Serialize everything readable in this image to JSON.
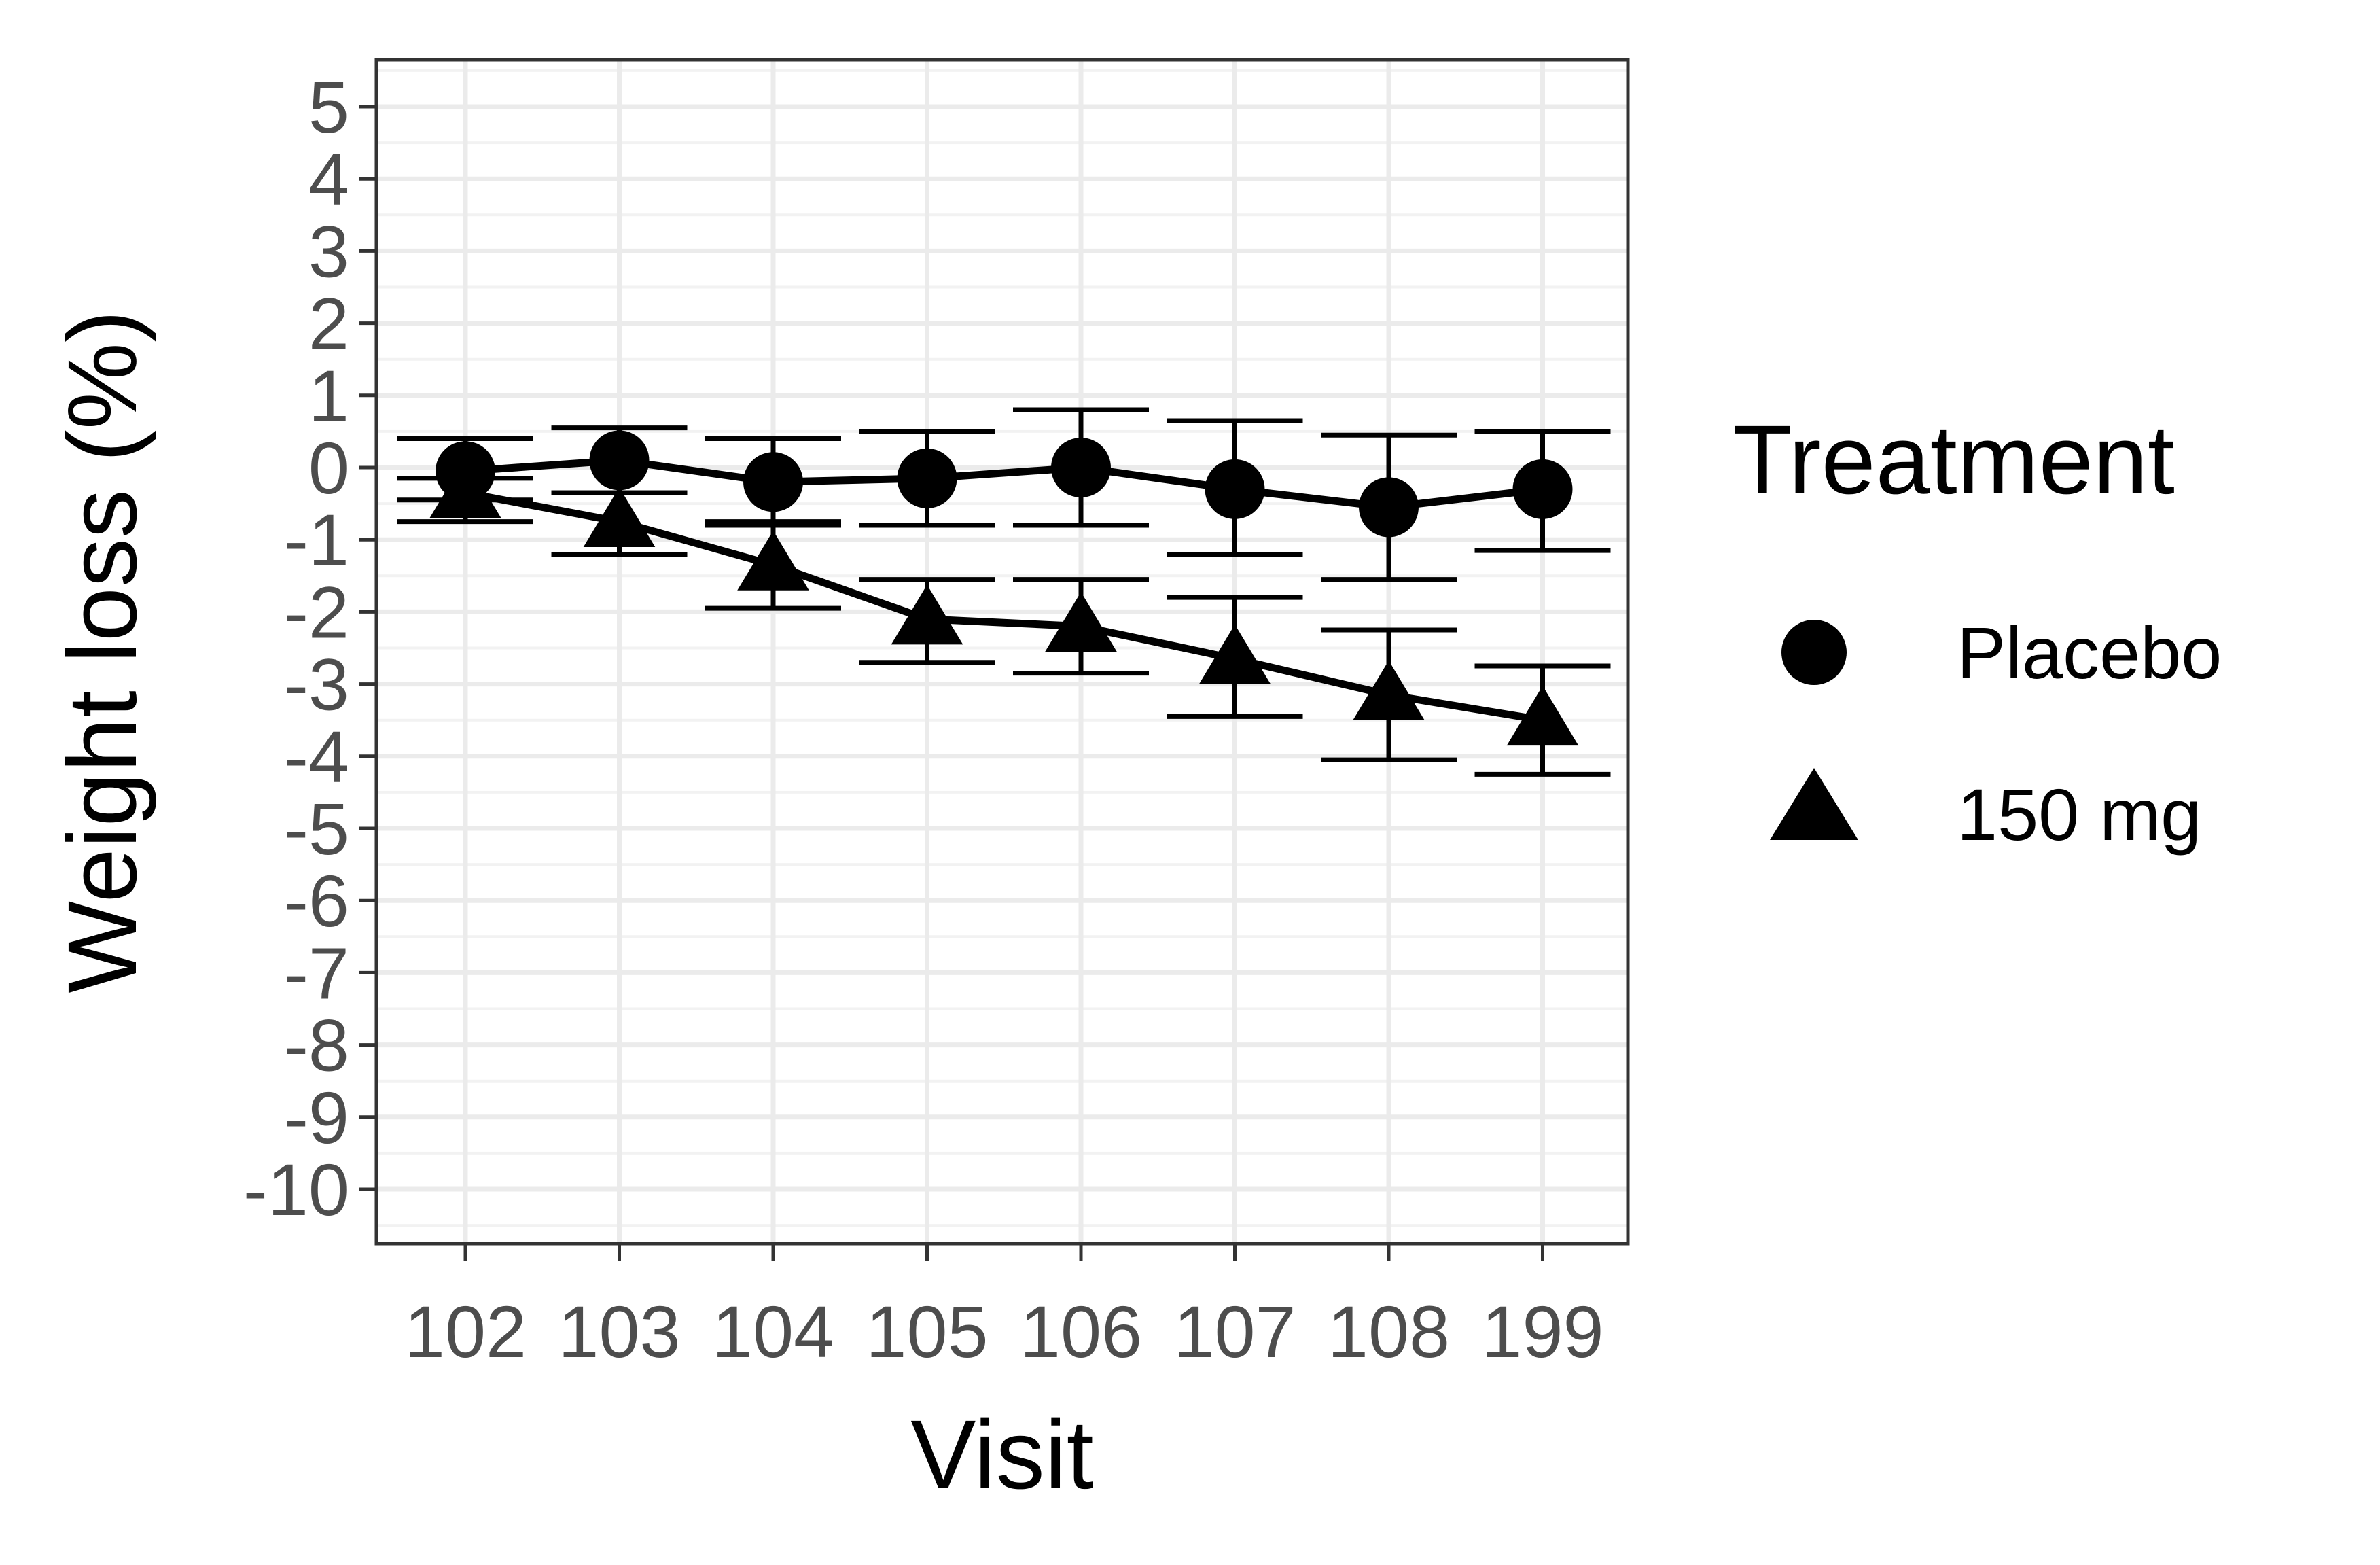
{
  "chart_data": {
    "type": "line",
    "title": "",
    "xlabel": "Visit",
    "ylabel": "Weight loss (%)",
    "categories": [
      "102",
      "103",
      "104",
      "105",
      "106",
      "107",
      "108",
      "199"
    ],
    "ylim": [
      -10.7,
      5.7
    ],
    "yticks": [
      5,
      4,
      3,
      2,
      1,
      0,
      -1,
      -2,
      -3,
      -4,
      -5,
      -6,
      -7,
      -8,
      -9,
      -10
    ],
    "ytick_labels": [
      "5",
      "4",
      "3",
      "2",
      "1",
      "0",
      "-1",
      "-2",
      "-3",
      "-4",
      "-5",
      "-6",
      "-7",
      "-8",
      "-9",
      "-10"
    ],
    "grid": true,
    "legend": {
      "title": "Treatment",
      "placement": "right"
    },
    "series": [
      {
        "name": "Placebo",
        "marker": "circle",
        "values": [
          -0.05,
          0.1,
          -0.2,
          -0.15,
          0.0,
          -0.3,
          -0.55,
          -0.3
        ],
        "error_low": [
          -0.45,
          -0.35,
          -0.75,
          -0.8,
          -0.8,
          -1.2,
          -1.55,
          -1.15
        ],
        "error_high": [
          0.4,
          0.55,
          0.4,
          0.5,
          0.8,
          0.65,
          0.45,
          0.5
        ]
      },
      {
        "name": "150 mg",
        "marker": "triangle",
        "values": [
          -0.35,
          -0.75,
          -1.35,
          -2.1,
          -2.2,
          -2.65,
          -3.15,
          -3.5
        ],
        "error_low": [
          -0.75,
          -1.2,
          -1.95,
          -2.7,
          -2.85,
          -3.45,
          -4.05,
          -4.25
        ],
        "error_high": [
          -0.15,
          -0.35,
          -0.8,
          -1.55,
          -1.55,
          -1.8,
          -2.25,
          -2.75
        ]
      }
    ],
    "colors": {
      "marks": "#000000",
      "panel_border": "#333333",
      "grid_major": "#ebebeb",
      "grid_minor": "#f2f2f2",
      "tick_text": "#4d4d4d",
      "background": "#ffffff"
    }
  }
}
